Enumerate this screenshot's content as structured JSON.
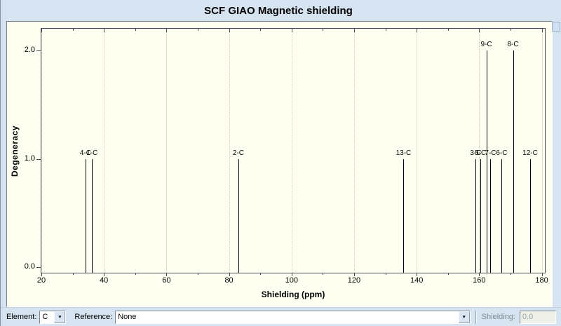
{
  "window": {
    "title": "SCF GIAO Magnetic shielding"
  },
  "chart_data": {
    "type": "bar",
    "subtype": "stick-spectrum",
    "title": "SCF GIAO Magnetic shielding",
    "xlabel": "Shielding (ppm)",
    "ylabel": "Degeneracy",
    "xlim": [
      20,
      181
    ],
    "ylim": [
      -0.05,
      2.2
    ],
    "x_ticks": [
      20,
      40,
      60,
      80,
      100,
      120,
      140,
      160,
      180
    ],
    "y_ticks": [
      0.0,
      1.0,
      2.0
    ],
    "grid": "vertical-dotted-at-major-ticks",
    "legend": "none",
    "peaks": [
      {
        "label": "4-C",
        "x": 34.1,
        "y": 1.0
      },
      {
        "label": "1-C",
        "x": 36.2,
        "y": 1.0
      },
      {
        "label": "2-C",
        "x": 83.0,
        "y": 1.0
      },
      {
        "label": "13-C",
        "x": 135.8,
        "y": 1.0
      },
      {
        "label": "3-C",
        "x": 158.9,
        "y": 1.0
      },
      {
        "label": "5-C",
        "x": 160.4,
        "y": 1.0
      },
      {
        "label": "9-C",
        "x": 162.3,
        "y": 2.0
      },
      {
        "label": "7-C",
        "x": 163.6,
        "y": 1.0
      },
      {
        "label": "6-C",
        "x": 167.2,
        "y": 1.0
      },
      {
        "label": "8-C",
        "x": 170.8,
        "y": 2.0
      },
      {
        "label": "12-C",
        "x": 176.3,
        "y": 1.0
      }
    ]
  },
  "controls": {
    "element_label": "Element:",
    "element_value": "C",
    "reference_label": "Reference:",
    "reference_value": "None",
    "shielding_label": "Shielding:",
    "shielding_value": "0.0"
  },
  "icons": {
    "dropdown_arrow": "▼"
  },
  "colors": {
    "window_bg": "#d6e3f1",
    "plot_bg": "#fffff2",
    "peak": "#000000",
    "grid_dotted": "#c9c9ae",
    "disabled_text": "#9aa3ad"
  }
}
